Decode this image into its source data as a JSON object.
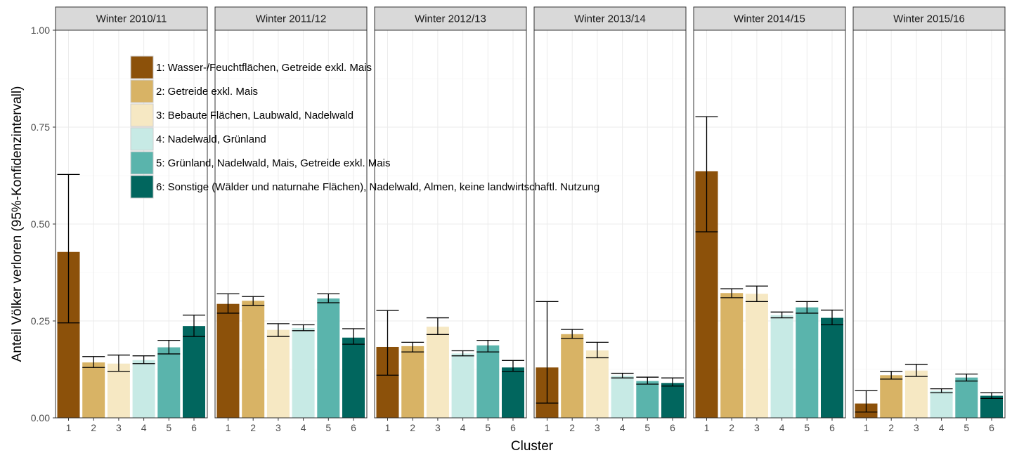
{
  "chart_data": {
    "type": "bar",
    "facets": [
      {
        "label": "Winter 2010/11",
        "values": [
          0.428,
          0.143,
          0.14,
          0.149,
          0.182,
          0.237
        ],
        "ci_low": [
          0.245,
          0.13,
          0.12,
          0.14,
          0.165,
          0.21
        ],
        "ci_high": [
          0.628,
          0.158,
          0.162,
          0.16,
          0.2,
          0.265
        ]
      },
      {
        "label": "Winter 2011/12",
        "values": [
          0.294,
          0.302,
          0.227,
          0.232,
          0.308,
          0.207
        ],
        "ci_low": [
          0.27,
          0.29,
          0.21,
          0.225,
          0.297,
          0.19
        ],
        "ci_high": [
          0.32,
          0.313,
          0.243,
          0.24,
          0.32,
          0.23
        ]
      },
      {
        "label": "Winter 2012/13",
        "values": [
          0.183,
          0.185,
          0.235,
          0.166,
          0.187,
          0.13
        ],
        "ci_low": [
          0.11,
          0.17,
          0.215,
          0.16,
          0.17,
          0.12
        ],
        "ci_high": [
          0.277,
          0.195,
          0.258,
          0.173,
          0.2,
          0.148
        ]
      },
      {
        "label": "Winter 2013/14",
        "values": [
          0.13,
          0.216,
          0.174,
          0.109,
          0.095,
          0.09
        ],
        "ci_low": [
          0.038,
          0.205,
          0.155,
          0.103,
          0.087,
          0.082
        ],
        "ci_high": [
          0.3,
          0.228,
          0.195,
          0.115,
          0.105,
          0.103
        ]
      },
      {
        "label": "Winter 2014/15",
        "values": [
          0.636,
          0.322,
          0.32,
          0.265,
          0.285,
          0.258
        ],
        "ci_low": [
          0.48,
          0.31,
          0.3,
          0.258,
          0.27,
          0.24
        ],
        "ci_high": [
          0.777,
          0.333,
          0.34,
          0.273,
          0.3,
          0.278
        ]
      },
      {
        "label": "Winter 2015/16",
        "values": [
          0.037,
          0.11,
          0.122,
          0.07,
          0.104,
          0.057
        ],
        "ci_low": [
          0.015,
          0.1,
          0.107,
          0.065,
          0.095,
          0.05
        ],
        "ci_high": [
          0.07,
          0.12,
          0.138,
          0.075,
          0.113,
          0.065
        ]
      }
    ],
    "categories": [
      "1",
      "2",
      "3",
      "4",
      "5",
      "6"
    ],
    "legend": [
      {
        "label": "1: Wasser-/Feuchtflächen, Getreide exkl. Mais",
        "color": "#8C510A"
      },
      {
        "label": "2: Getreide exkl. Mais",
        "color": "#D8B365"
      },
      {
        "label": "3: Bebaute Flächen, Laubwald, Nadelwald",
        "color": "#F6E8C3"
      },
      {
        "label": "4: Nadelwald, Grünland",
        "color": "#C7EAE5"
      },
      {
        "label": "5: Grünland, Nadelwald, Mais, Getreide exkl. Mais",
        "color": "#5AB4AC"
      },
      {
        "label": "6: Sonstige (Wälder und naturnahe Flächen), Nadelwald, Almen, keine landwirtschaftl. Nutzung",
        "color": "#01665E"
      }
    ],
    "colors": [
      "#8C510A",
      "#D8B365",
      "#F6E8C3",
      "#C7EAE5",
      "#5AB4AC",
      "#01665E"
    ],
    "xlabel": "Cluster",
    "ylabel": "Anteil Völker verloren (95%-Konfidenzintervall)",
    "ylim": [
      0,
      1
    ],
    "y_ticks": [
      0,
      0.25,
      0.5,
      0.75,
      1
    ],
    "y_tick_labels": [
      "0.00",
      "0.25",
      "0.50",
      "0.75",
      "1.00"
    ],
    "grid": true,
    "legend_position": "top-left inside first panel"
  }
}
